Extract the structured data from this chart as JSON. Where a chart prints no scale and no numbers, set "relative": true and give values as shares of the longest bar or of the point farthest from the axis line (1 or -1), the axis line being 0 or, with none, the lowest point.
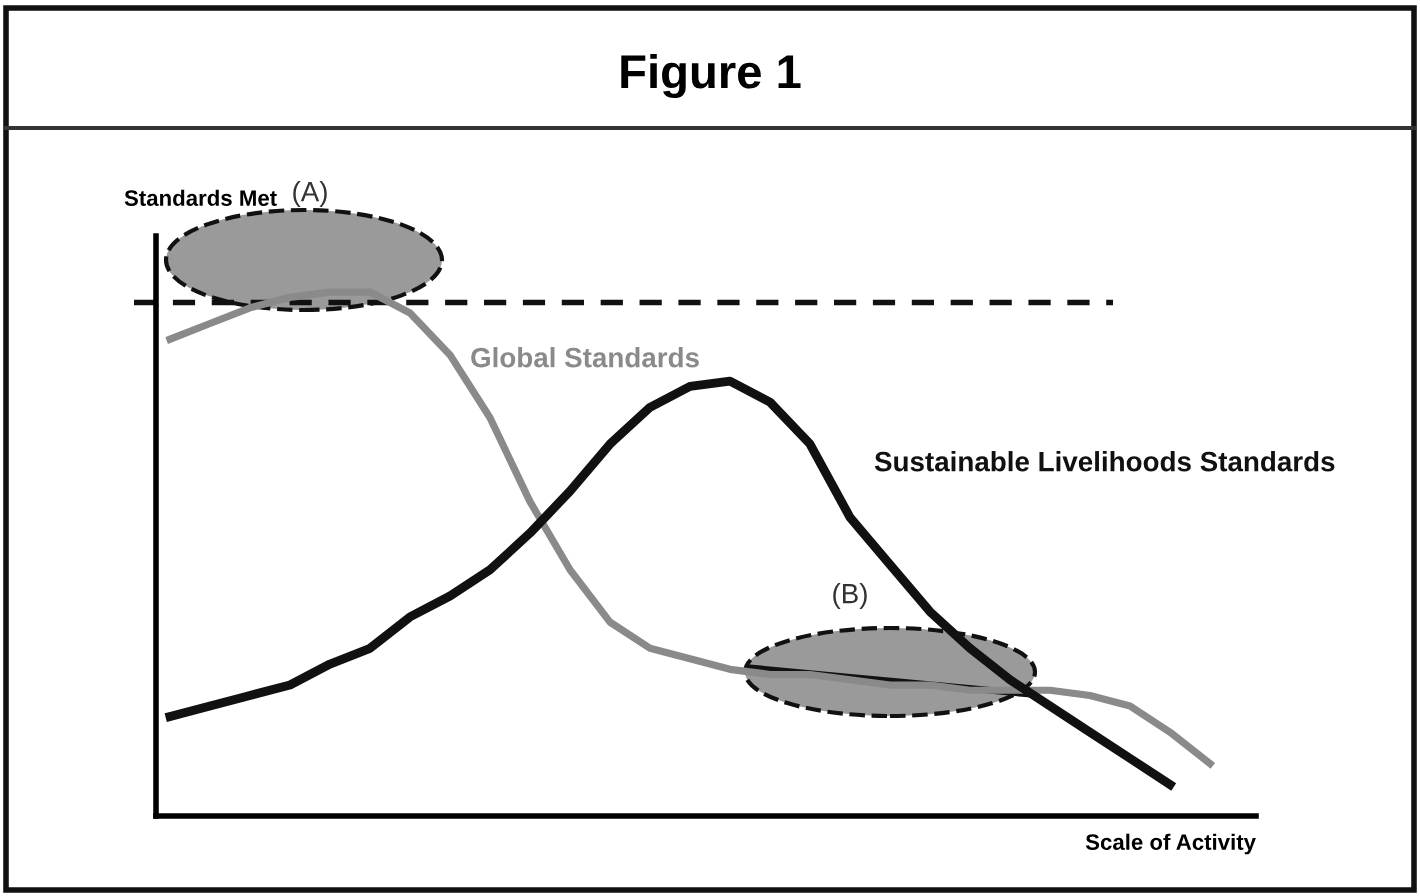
{
  "chart_data": {
    "type": "line",
    "title": "Figure 1",
    "xlabel": "Scale of Activity",
    "ylabel": "Standards Met",
    "relative": true,
    "categories": [
      null,
      null,
      null,
      null,
      null,
      null,
      null,
      null,
      null,
      null,
      null,
      null,
      null,
      null,
      null,
      null,
      null,
      null,
      null,
      null,
      null,
      null,
      null,
      null,
      null,
      null,
      null
    ],
    "series": [
      {
        "name": "Global Standards",
        "color": "#8a8a8a",
        "values": [
          0.91,
          0.94,
          0.97,
          0.99,
          1.0,
          1.0,
          0.96,
          0.88,
          0.76,
          0.6,
          0.47,
          0.37,
          0.32,
          0.3,
          0.28,
          0.27,
          0.27,
          0.26,
          0.25,
          0.25,
          0.24,
          0.24,
          0.24,
          0.23,
          0.21,
          0.16,
          0.1
        ]
      },
      {
        "name": "Sustainable Livelihoods Standards",
        "color": "#111111",
        "values": [
          0.19,
          0.21,
          0.23,
          0.25,
          0.29,
          0.32,
          0.38,
          0.42,
          0.47,
          0.54,
          0.62,
          0.71,
          0.78,
          0.82,
          0.83,
          0.79,
          0.71,
          0.57,
          0.48,
          0.39,
          0.32,
          0.26,
          0.21,
          0.16,
          0.11,
          0.06,
          null
        ]
      }
    ],
    "ref_lines": [
      {
        "axis": "y",
        "value": 0.98,
        "color": "#111111",
        "line_style": "dashed"
      }
    ],
    "annotations": [
      "(A)",
      "(B)"
    ],
    "legend": false,
    "marker": "none",
    "line_style": "solid"
  }
}
